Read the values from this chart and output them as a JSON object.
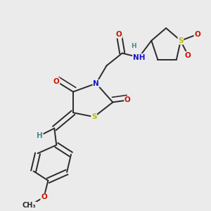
{
  "bg_color": "#ebebeb",
  "bond_color": "#2a2a2a",
  "label_colors": {
    "N": "#1515cc",
    "O": "#cc1100",
    "S": "#bbbb00",
    "H": "#4a8888",
    "C": "#2a2a2a"
  },
  "font_size": 7.5,
  "lw": 1.4,
  "dbo": 0.012
}
